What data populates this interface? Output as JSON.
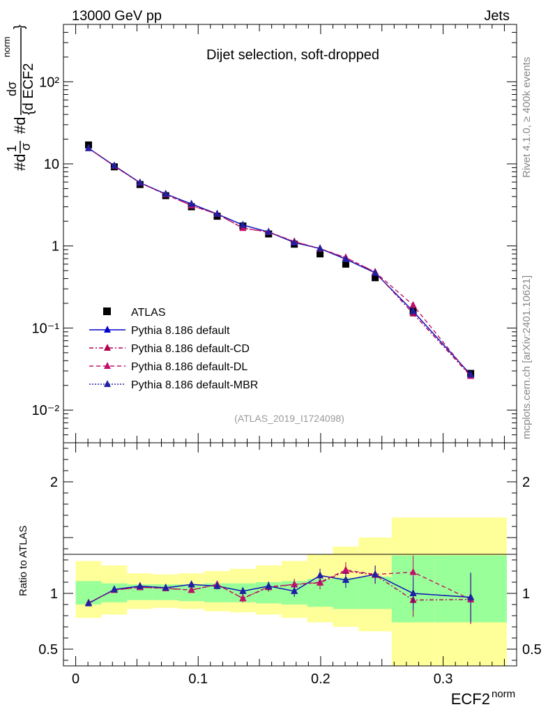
{
  "header": {
    "left": "13000 GeV pp",
    "right": "Jets",
    "side_top": "Rivet 4.1.0, ≥ 400k events",
    "side_bottom": "mcplots.cern.ch [arXiv:2401.10621]"
  },
  "colors": {
    "atlas": "#000000",
    "default": "#0000cc",
    "cd": "#b00050",
    "dl": "#c0106a",
    "mbr": "#2020a0",
    "band_stat": "#99ff99",
    "band_tot": "#ffff99"
  },
  "chart_data": [
    {
      "type": "line",
      "title": "Dijet selection, soft-dropped",
      "ylabel_parts": [
        "#d",
        "1",
        "σ",
        "#d",
        "dσ",
        "{d ECF2",
        "norm",
        "}"
      ],
      "yscale": "log",
      "xlim": [
        -0.01,
        0.36
      ],
      "ylim": [
        0.004,
        500
      ],
      "ytick_labels": [
        "10⁻²",
        "10⁻¹",
        "1",
        "10",
        "10²"
      ],
      "ytick_values": [
        0.01,
        0.1,
        1,
        10,
        100
      ],
      "watermark": "(ATLAS_2019_I1724098)",
      "x": [
        0.0105,
        0.0315,
        0.0525,
        0.0735,
        0.0945,
        0.1155,
        0.1365,
        0.1575,
        0.1785,
        0.1995,
        0.2205,
        0.2445,
        0.2755,
        0.3225
      ],
      "xerr_edges": [
        0.0,
        0.021,
        0.042,
        0.063,
        0.084,
        0.105,
        0.126,
        0.147,
        0.168,
        0.189,
        0.21,
        0.231,
        0.258,
        0.293,
        0.352
      ],
      "series": [
        {
          "name": "ATLAS",
          "key": "atlas",
          "style": "square",
          "values": [
            17.0,
            9.2,
            5.6,
            4.1,
            3.0,
            2.3,
            1.75,
            1.4,
            1.05,
            0.8,
            0.6,
            0.41,
            0.16,
            0.028
          ]
        },
        {
          "name": "Pythia 8.186 default",
          "key": "default",
          "style": "solid",
          "values": [
            15.5,
            9.5,
            5.9,
            4.3,
            3.25,
            2.45,
            1.8,
            1.48,
            1.1,
            0.93,
            0.69,
            0.47,
            0.16,
            0.027
          ]
        },
        {
          "name": "Pythia 8.186 default-CD",
          "key": "cd",
          "style": "dashdot",
          "values": [
            15.5,
            9.4,
            5.85,
            4.25,
            3.1,
            2.45,
            1.65,
            1.47,
            1.13,
            0.92,
            0.72,
            0.48,
            0.15,
            0.026
          ]
        },
        {
          "name": "Pythia 8.186 default-DL",
          "key": "dl",
          "style": "dashed",
          "values": [
            15.5,
            9.4,
            5.9,
            4.25,
            3.1,
            2.45,
            1.65,
            1.48,
            1.13,
            0.93,
            0.72,
            0.48,
            0.19,
            0.026
          ]
        },
        {
          "name": "Pythia 8.186 default-MBR",
          "key": "mbr",
          "style": "dotted",
          "values": [
            15.5,
            9.5,
            5.9,
            4.3,
            3.25,
            2.45,
            1.8,
            1.48,
            1.1,
            0.93,
            0.69,
            0.47,
            0.16,
            0.027
          ]
        }
      ]
    },
    {
      "type": "line",
      "title": "",
      "ylabel": "Ratio to ATLAS",
      "xlabel": "ECF2",
      "xlabel_sup": "norm",
      "xlim": [
        -0.01,
        0.36
      ],
      "ylim": [
        0.35,
        2.35
      ],
      "xtick_labels": [
        "0",
        "0.1",
        "0.2",
        "0.3"
      ],
      "xtick_values": [
        0,
        0.1,
        0.2,
        0.3
      ],
      "ytick_labels": [
        "0.5",
        "1",
        "2"
      ],
      "ytick_values": [
        0.5,
        1,
        2
      ],
      "band_inner_lo": [
        0.9,
        0.92,
        0.94,
        0.94,
        0.93,
        0.92,
        0.92,
        0.91,
        0.9,
        0.88,
        0.86,
        0.86,
        0.74,
        0.74
      ],
      "band_inner_hi": [
        1.11,
        1.09,
        1.08,
        1.08,
        1.08,
        1.09,
        1.09,
        1.1,
        1.11,
        1.13,
        1.14,
        1.15,
        1.34,
        1.34
      ],
      "band_outer_lo": [
        0.78,
        0.81,
        0.86,
        0.87,
        0.86,
        0.84,
        0.83,
        0.81,
        0.78,
        0.74,
        0.7,
        0.66,
        0.35,
        0.35
      ],
      "band_outer_hi": [
        1.29,
        1.25,
        1.18,
        1.17,
        1.18,
        1.2,
        1.22,
        1.25,
        1.29,
        1.35,
        1.42,
        1.5,
        1.68,
        1.68
      ],
      "series": [
        {
          "name": "Pythia 8.186 default",
          "key": "default",
          "style": "solid",
          "values": [
            0.91,
            1.035,
            1.065,
            1.05,
            1.08,
            1.065,
            1.02,
            1.065,
            1.02,
            1.16,
            1.12,
            1.17,
            1.0,
            0.965
          ],
          "errors": [
            0.02,
            0.02,
            0.02,
            0.02,
            0.025,
            0.03,
            0.035,
            0.04,
            0.05,
            0.06,
            0.07,
            0.08,
            0.15,
            0.22
          ]
        },
        {
          "name": "Pythia 8.186 default-CD",
          "key": "cd",
          "style": "dashdot",
          "values": [
            0.915,
            1.03,
            1.055,
            1.045,
            1.03,
            1.08,
            0.955,
            1.055,
            1.08,
            1.095,
            1.2,
            1.165,
            0.94,
            0.945
          ],
          "errors": [
            0.02,
            0.02,
            0.02,
            0.02,
            0.025,
            0.03,
            0.035,
            0.04,
            0.05,
            0.06,
            0.07,
            0.08,
            0.15,
            0.22
          ]
        },
        {
          "name": "Pythia 8.186 default-DL",
          "key": "dl",
          "style": "dashed",
          "values": [
            0.915,
            1.03,
            1.055,
            1.045,
            1.03,
            1.08,
            0.955,
            1.06,
            1.08,
            1.1,
            1.21,
            1.17,
            1.19,
            0.945
          ],
          "errors": [
            0.02,
            0.02,
            0.02,
            0.02,
            0.025,
            0.03,
            0.035,
            0.04,
            0.05,
            0.06,
            0.07,
            0.08,
            0.15,
            0.22
          ]
        },
        {
          "name": "Pythia 8.186 default-MBR",
          "key": "mbr",
          "style": "dotted",
          "values": [
            0.91,
            1.035,
            1.065,
            1.05,
            1.08,
            1.065,
            1.02,
            1.065,
            1.02,
            1.16,
            1.12,
            1.17,
            1.0,
            0.965
          ],
          "errors": [
            0.02,
            0.02,
            0.02,
            0.02,
            0.025,
            0.03,
            0.035,
            0.04,
            0.05,
            0.06,
            0.07,
            0.08,
            0.15,
            0.22
          ]
        }
      ]
    }
  ]
}
